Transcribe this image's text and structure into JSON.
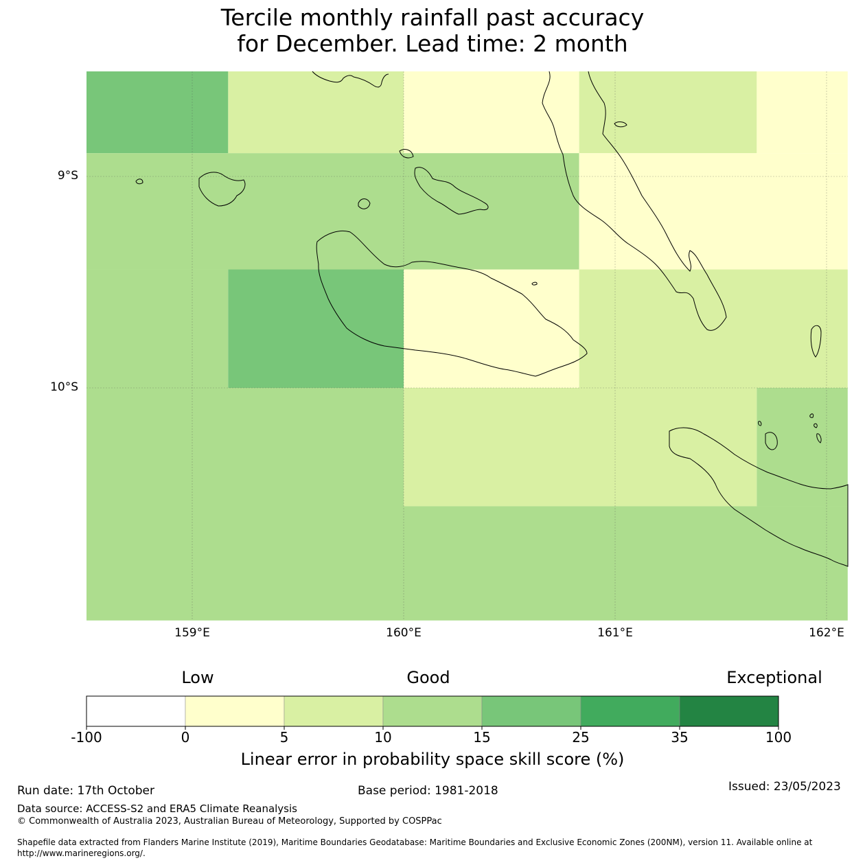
{
  "title": {
    "line1": "Tercile monthly rainfall past accuracy",
    "line2": "for December. Lead time: 2 month"
  },
  "map": {
    "lon_range": [
      158.5,
      162.1
    ],
    "lat_range": [
      -8.5,
      -11.1
    ],
    "lat_ticks": [
      {
        "value": -9,
        "label": "9°S"
      },
      {
        "value": -10,
        "label": "10°S"
      }
    ],
    "lon_ticks": [
      {
        "value": 159,
        "label": "159°E"
      },
      {
        "value": 160,
        "label": "160°E"
      },
      {
        "value": 161,
        "label": "161°E"
      },
      {
        "value": 162,
        "label": "162°E"
      }
    ],
    "cells_note": "LEPS skill category per grid cell",
    "cells": [
      {
        "lon0": 158.5,
        "lon1": 159.17,
        "lat0": -8.5,
        "lat1": -8.89,
        "cat": 4
      },
      {
        "lon0": 159.17,
        "lon1": 160.0,
        "lat0": -8.5,
        "lat1": -8.89,
        "cat": 2
      },
      {
        "lon0": 160.0,
        "lon1": 160.83,
        "lat0": -8.5,
        "lat1": -8.89,
        "cat": 1
      },
      {
        "lon0": 160.83,
        "lon1": 161.67,
        "lat0": -8.5,
        "lat1": -8.89,
        "cat": 2
      },
      {
        "lon0": 161.67,
        "lon1": 162.1,
        "lat0": -8.5,
        "lat1": -8.89,
        "cat": 1
      },
      {
        "lon0": 158.5,
        "lon1": 160.83,
        "lat0": -8.89,
        "lat1": -9.44,
        "cat": 3
      },
      {
        "lon0": 160.83,
        "lon1": 162.1,
        "lat0": -8.89,
        "lat1": -9.44,
        "cat": 1
      },
      {
        "lon0": 158.5,
        "lon1": 159.17,
        "lat0": -9.44,
        "lat1": -10.0,
        "cat": 3
      },
      {
        "lon0": 159.17,
        "lon1": 160.0,
        "lat0": -9.44,
        "lat1": -10.0,
        "cat": 4
      },
      {
        "lon0": 160.0,
        "lon1": 160.83,
        "lat0": -9.44,
        "lat1": -10.0,
        "cat": 1
      },
      {
        "lon0": 160.83,
        "lon1": 162.1,
        "lat0": -9.44,
        "lat1": -10.0,
        "cat": 2
      },
      {
        "lon0": 158.5,
        "lon1": 160.0,
        "lat0": -10.0,
        "lat1": -11.1,
        "cat": 3
      },
      {
        "lon0": 160.0,
        "lon1": 161.67,
        "lat0": -10.0,
        "lat1": -10.56,
        "cat": 2
      },
      {
        "lon0": 161.67,
        "lon1": 162.1,
        "lat0": -10.0,
        "lat1": -10.56,
        "cat": 3
      },
      {
        "lon0": 160.0,
        "lon1": 162.1,
        "lat0": -10.56,
        "lat1": -11.1,
        "cat": 3
      }
    ]
  },
  "colorbar": {
    "words": [
      "Low",
      "Good",
      "Exceptional"
    ],
    "ticks": [
      "-100",
      "0",
      "5",
      "10",
      "15",
      "25",
      "35",
      "100"
    ],
    "colors": [
      "#ffffff",
      "#ffffcc",
      "#d9f0a3",
      "#addd8e",
      "#78c679",
      "#41ab5d",
      "#238443"
    ],
    "label": "Linear error in probability space skill score (%)"
  },
  "footer": {
    "run_date": "Run date: 17th October",
    "base_period": "Base period: 1981-2018",
    "issued": "Issued: 23/05/2023",
    "data_source": "Data source: ACCESS-S2 and ERA5 Climate Reanalysis",
    "copyright": "© Commonwealth of Australia 2023, Australian Bureau of Meteorology, Supported by COSPPac",
    "shapefile_line1": "Shapefile data extracted from Flanders Marine Institute (2019), Maritime Boundaries Geodatabase: Maritime Boundaries and Exclusive Economic Zones (200NM), version 11. Available online at",
    "shapefile_line2": "http://www.marineregions.org/."
  }
}
